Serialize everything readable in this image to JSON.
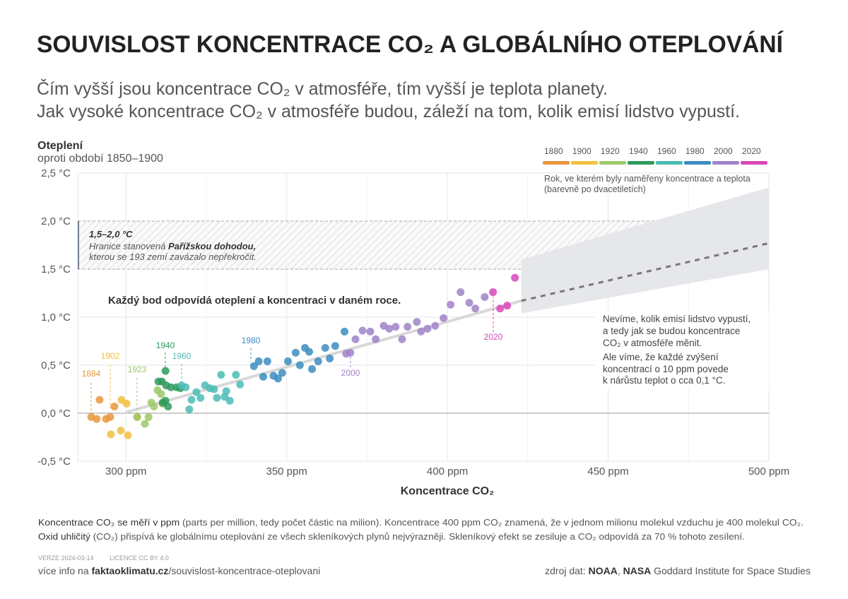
{
  "header": {
    "title": "SOUVISLOST KONCENTRACE CO₂ A GLOBÁLNÍHO OTEPLOVÁNÍ",
    "subtitle": [
      "Čím vyšší jsou koncentrace CO₂ v atmosféře, tím vyšší je teplota planety.",
      "Jak vysoké koncentrace CO₂ v atmosféře budou, záleží na tom, kolik emisí lidstvo vypustí."
    ]
  },
  "chart_data": {
    "type": "scatter",
    "ylabel": "Oteplení",
    "ylabel_sub": "oproti období 1850–1900",
    "xlabel": "Koncentrace CO₂",
    "xlim": [
      285,
      500
    ],
    "ylim": [
      -0.5,
      2.5
    ],
    "xticks": [
      {
        "value": 300,
        "label": "300 ppm"
      },
      {
        "value": 350,
        "label": "350 ppm"
      },
      {
        "value": 400,
        "label": "400 ppm"
      },
      {
        "value": 450,
        "label": "450 ppm"
      },
      {
        "value": 500,
        "label": "500 ppm"
      }
    ],
    "xminor_ticks": [
      325,
      375,
      425,
      475
    ],
    "yticks": [
      {
        "value": -0.5,
        "label": "-0,5 °C"
      },
      {
        "value": 0,
        "label": "0,0 °C"
      },
      {
        "value": 0.5,
        "label": "0,5 °C"
      },
      {
        "value": 1,
        "label": "1,0 °C"
      },
      {
        "value": 1.5,
        "label": "1,5 °C"
      },
      {
        "value": 2,
        "label": "2,0 °C"
      },
      {
        "value": 2.5,
        "label": "2,5 °C"
      }
    ],
    "grid": true,
    "legend_note": [
      "Rok, ve kterém byly naměřeny koncentrace a teplota",
      "(barevně po dvacetiletích)"
    ],
    "series": [
      {
        "name": "1880",
        "color": "#e8963c",
        "x": [
          289.2,
          290.9,
          291.8,
          293.8,
          295.1,
          296.4
        ],
        "y": [
          -0.04,
          -0.06,
          0.14,
          -0.06,
          -0.04,
          0.07
        ]
      },
      {
        "name": "1900",
        "color": "#f0c040",
        "x": [
          295.3,
          298.4,
          298.6,
          300.2,
          300.6,
          303.5
        ],
        "y": [
          -0.22,
          -0.18,
          0.14,
          0.1,
          -0.23,
          -0.04
        ]
      },
      {
        "name": "1920",
        "color": "#9cc96a",
        "x": [
          303.5,
          305.9,
          307,
          307.9,
          308.7,
          309.8,
          310.9,
          311.4
        ],
        "y": [
          -0.04,
          -0.11,
          -0.04,
          0.11,
          0.07,
          0.24,
          0.2,
          0.1
        ]
      },
      {
        "name": "1940",
        "color": "#2e9a5a",
        "x": [
          310.1,
          311.2,
          312.3,
          312.5,
          311.4,
          312.3,
          313.1,
          314,
          315.8,
          316.9
        ],
        "y": [
          0.33,
          0.33,
          0.44,
          0.29,
          0.11,
          0.13,
          0.07,
          0.27,
          0.27,
          0.26
        ]
      },
      {
        "name": "1960",
        "color": "#4bbcb4",
        "x": [
          317.3,
          318.6,
          319.7,
          320.4,
          321.9,
          323.2,
          324.6,
          326.1,
          327.4,
          328.3,
          329.6,
          330.7,
          331.2,
          332.3,
          334.2,
          335.5
        ],
        "y": [
          0.29,
          0.27,
          0.04,
          0.14,
          0.22,
          0.16,
          0.29,
          0.26,
          0.25,
          0.16,
          0.4,
          0.17,
          0.23,
          0.13,
          0.4,
          0.3
        ]
      },
      {
        "name": "1980",
        "color": "#3b8dc0",
        "x": [
          339.8,
          341.3,
          342.7,
          344,
          345.9,
          347.3,
          348.6,
          350.4,
          352.8,
          354.1,
          355.7,
          357,
          357.9,
          359.8,
          362,
          363.4,
          365.1,
          368
        ],
        "y": [
          0.49,
          0.54,
          0.38,
          0.54,
          0.39,
          0.36,
          0.42,
          0.54,
          0.63,
          0.5,
          0.68,
          0.64,
          0.46,
          0.54,
          0.68,
          0.57,
          0.7,
          0.85
        ]
      },
      {
        "name": "2000",
        "color": "#a082c8",
        "x": [
          368.5,
          369.8,
          371.4,
          373.6,
          376,
          377.7,
          380.2,
          381.9,
          383.9,
          385.9,
          387.6,
          390.5,
          391.8,
          393.8,
          396.2,
          398.8,
          401,
          404.1,
          406.8,
          408.7,
          411.6
        ],
        "y": [
          0.62,
          0.63,
          0.77,
          0.86,
          0.85,
          0.77,
          0.91,
          0.88,
          0.9,
          0.77,
          0.9,
          0.95,
          0.85,
          0.88,
          0.91,
          0.99,
          1.13,
          1.26,
          1.15,
          1.09,
          1.21
        ]
      },
      {
        "name": "2020",
        "color": "#d847b8",
        "x": [
          414.2,
          416.4,
          418.6,
          421
        ],
        "y": [
          1.26,
          1.09,
          1.12,
          1.41
        ]
      }
    ],
    "year_labels": [
      "1884",
      "1902",
      "1923",
      "1940",
      "1960",
      "1980",
      "2000",
      "2020"
    ],
    "trend": {
      "x": [
        300,
        423
      ],
      "y": [
        0.01,
        1.17
      ]
    },
    "projection": {
      "x": [
        423,
        500
      ],
      "y": [
        1.17,
        1.77
      ]
    },
    "projection_band": {
      "x": [
        423,
        500
      ],
      "low": [
        1.04,
        1.5
      ],
      "high": [
        1.6,
        2.35
      ]
    },
    "paris_range": [
      1.5,
      2.0
    ],
    "paris_note": {
      "range": "1,5–2,0 °C",
      "line1": "Hranice stanovená ",
      "line1_bold": "Pařížskou dohodou,",
      "line2": "kterou se 193 zemí zavázalo nepřekročit."
    },
    "point_note": "Každý bod odpovídá oteplení a koncentraci v daném roce.",
    "future_note": [
      "Nevíme, kolik emisí lidstvo vypustí,",
      "a tedy jak se budou koncentrace",
      "CO₂ v atmosféře měnit.",
      "Ale víme, že každé zvýšení",
      "koncentrací o 10 ppm povede",
      "k nárůstu teplot o cca 0,1 °C."
    ]
  },
  "footer": {
    "note1": [
      "Koncentrace CO₂ se měří v ppm",
      " (parts per million, tedy počet částic na milion). Koncentrace 400 ppm CO₂ znamená, že v jednom milionu molekul vzduchu je 400 molekul CO₂."
    ],
    "note2": [
      "Oxid uhličitý",
      " (CO₂) přispívá ke globálnímu oteplování ze všech skleníkových plynů nejvýrazněji. Skleníkový efekt se zesiluje a CO₂ odpovídá za 70 % tohoto zesílení."
    ],
    "version": "VERZE 2024-03-14",
    "license": "LICENCE CC BY 4.0",
    "more": [
      "více info na ",
      "faktaoklimatu.cz",
      "/souvislost-koncentrace-oteplovani"
    ],
    "source": [
      "zdroj dat: ",
      "NOAA",
      ", ",
      "NASA",
      " Goddard Institute for Space Studies"
    ]
  }
}
